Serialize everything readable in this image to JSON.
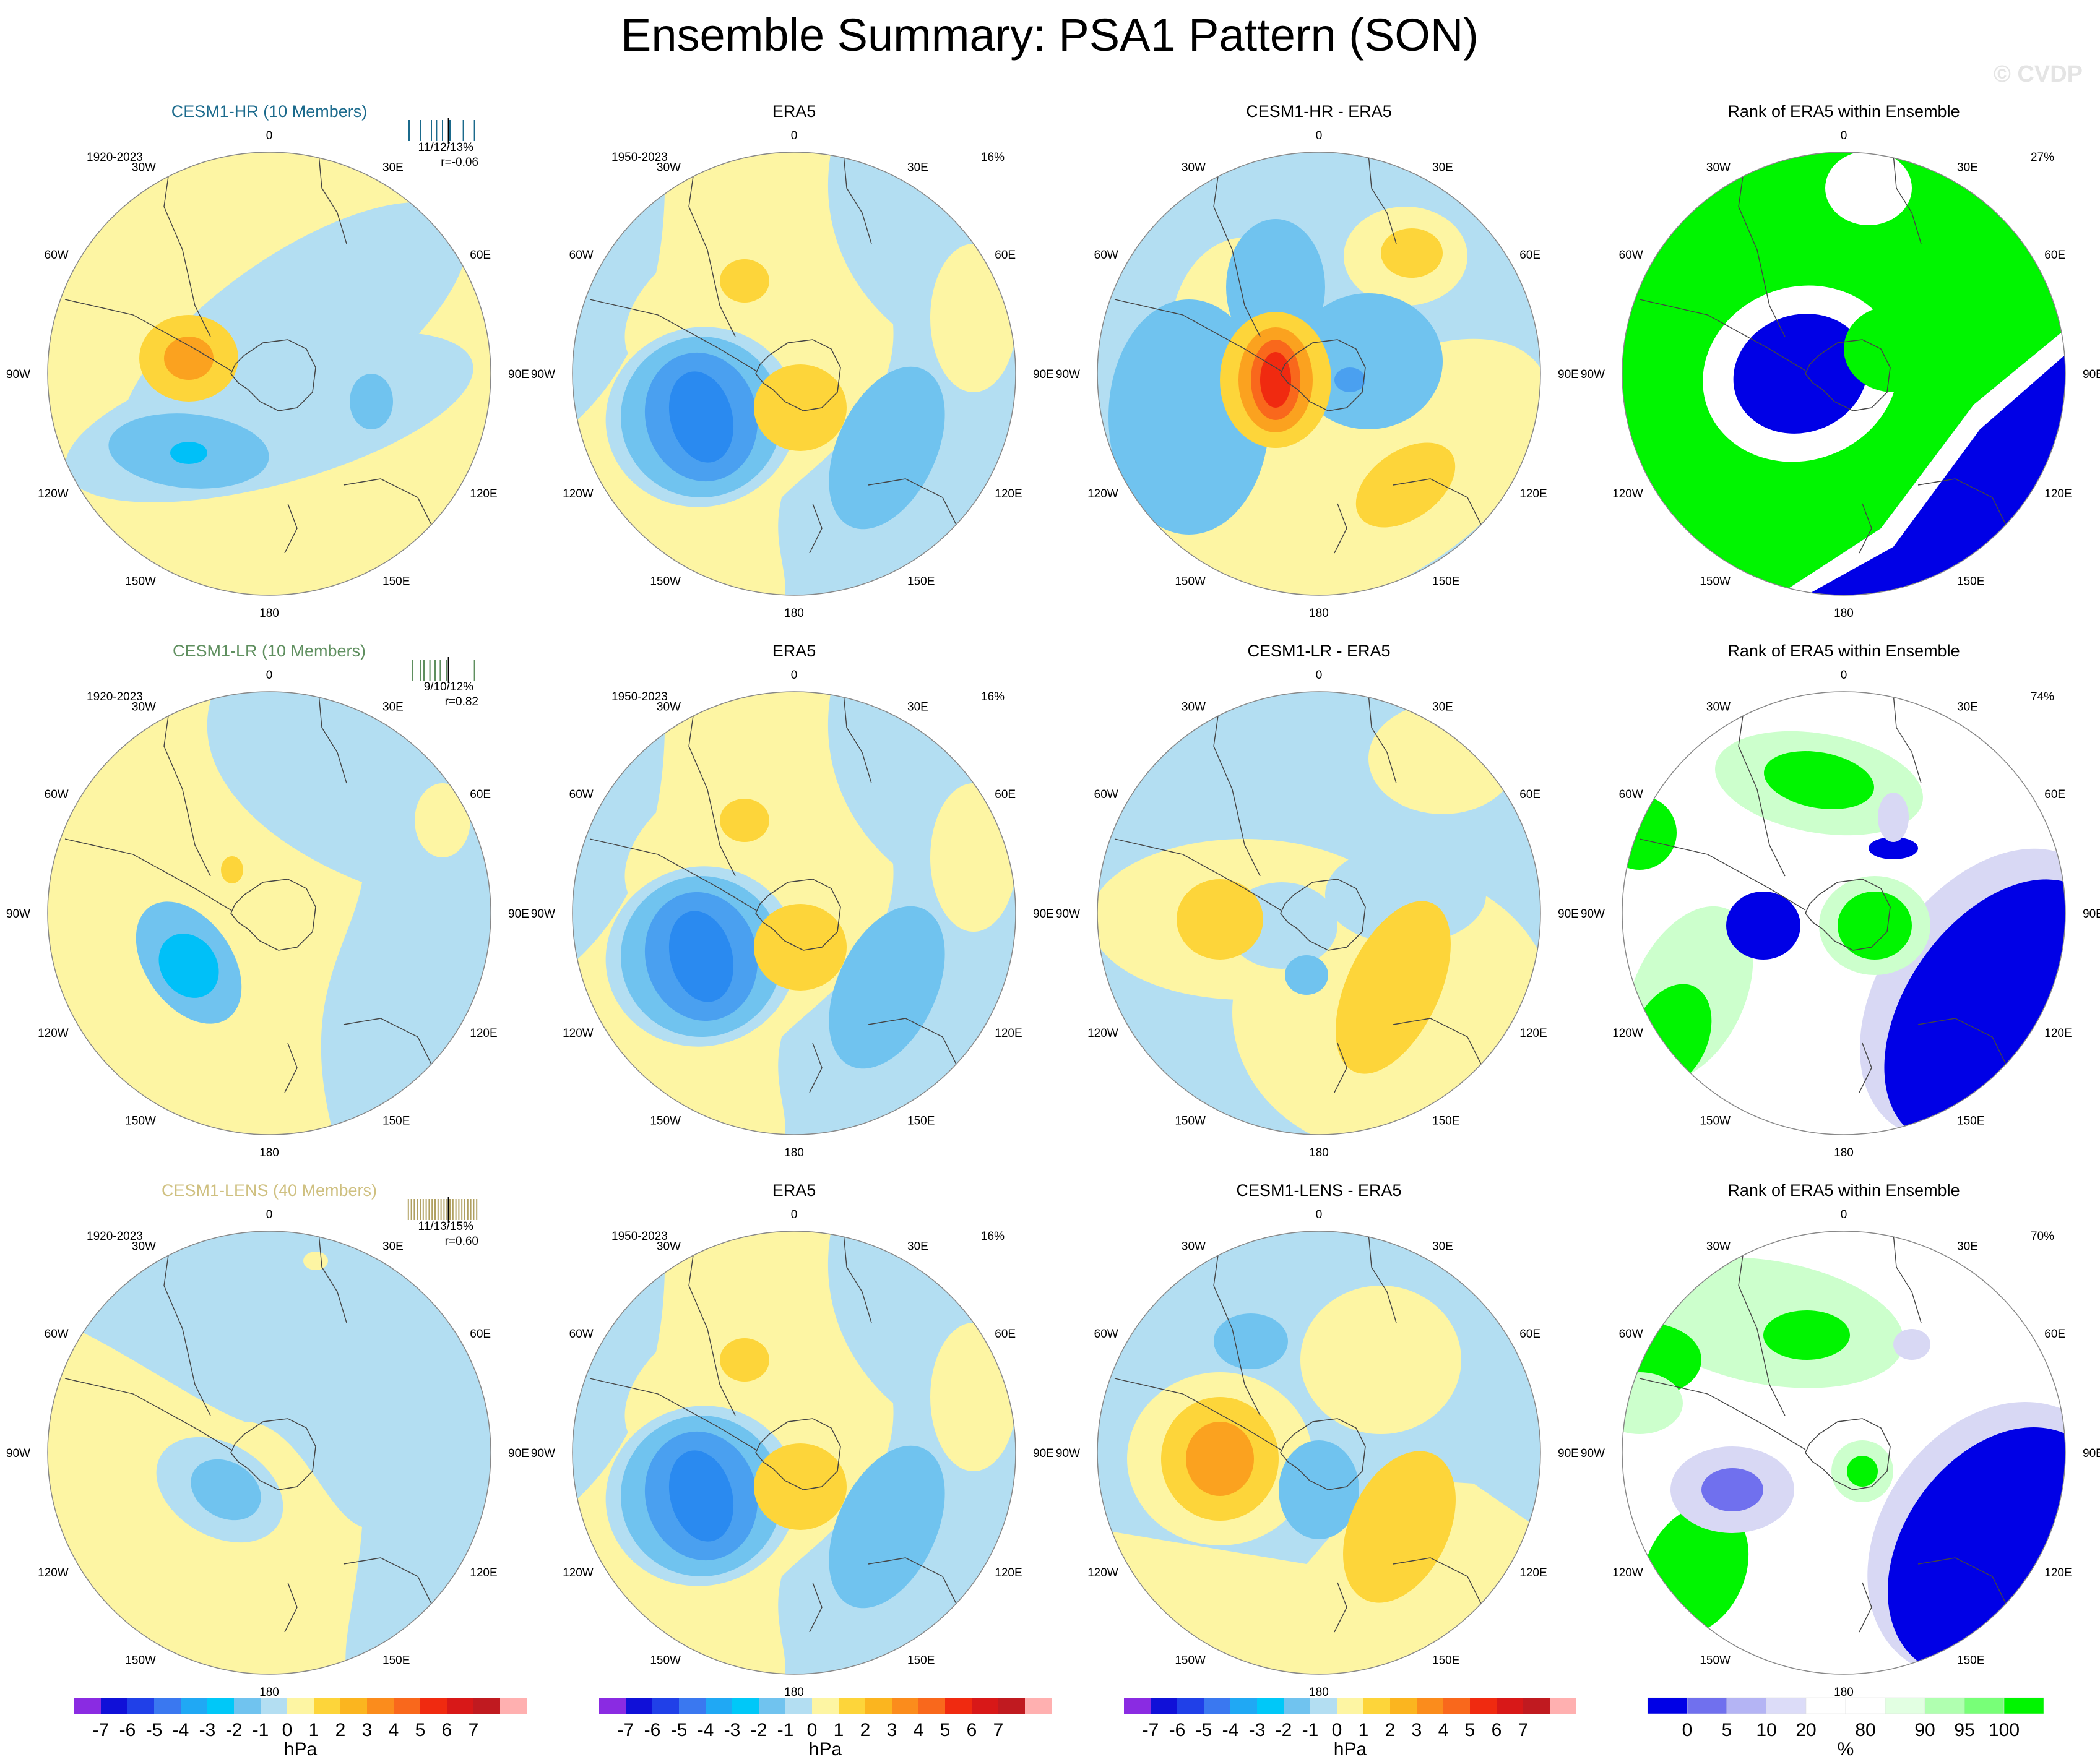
{
  "title": "Ensemble Summary: PSA1 Pattern (SON)",
  "watermark": "© CVDP",
  "colors": {
    "ocean_blue": "#b3def2",
    "land_yellow": "#fdf5a3",
    "neg_1": "#70c3ef",
    "neg_2": "#4aa0f0",
    "neg_3": "#2a8af0",
    "neg_4": "#00c0f8",
    "pos_1": "#fdd53a",
    "pos_2": "#fba21f",
    "pos_3": "#f9681c",
    "pos_4": "#f02a10",
    "rank_low": "#0000e6",
    "rank_high": "#00f500",
    "rank_light_green": "#ccffcc",
    "rank_lavender": "#d8d8f4",
    "hr_title_color": "#1b6a8c",
    "lr_title_color": "#5f8f5f",
    "lens_title_color": "#cfc080"
  },
  "rows": [
    {
      "model_title": "CESM1-HR (10 Members)",
      "model_period": "1920-2023",
      "model_stats": "11/12/13%",
      "model_corr": "r=-0.06",
      "obs_title": "ERA5",
      "obs_period": "1950-2023",
      "obs_pct": "16%",
      "diff_title": "CESM1-HR - ERA5",
      "rank_title": "Rank of ERA5 within Ensemble",
      "rank_pct": "27%",
      "model_ticks": [
        0.05,
        0.2,
        0.35,
        0.42,
        0.5,
        0.6,
        0.78,
        0.93
      ],
      "model_tick_color": "#1b6a8c"
    },
    {
      "model_title": "CESM1-LR (10 Members)",
      "model_period": "1920-2023",
      "model_stats": "9/10/12%",
      "model_corr": "r=0.82",
      "obs_title": "ERA5",
      "obs_period": "1950-2023",
      "obs_pct": "16%",
      "diff_title": "CESM1-LR - ERA5",
      "rank_title": "Rank of ERA5 within Ensemble",
      "rank_pct": "74%",
      "model_ticks": [
        0.1,
        0.2,
        0.25,
        0.33,
        0.4,
        0.47,
        0.55,
        0.93
      ],
      "model_tick_color": "#5f8f5f"
    },
    {
      "model_title": "CESM1-LENS (40 Members)",
      "model_period": "1920-2023",
      "model_stats": "11/13/15%",
      "model_corr": "r=0.60",
      "obs_title": "ERA5",
      "obs_period": "1950-2023",
      "obs_pct": "16%",
      "diff_title": "CESM1-LENS - ERA5",
      "rank_title": "Rank of ERA5 within Ensemble",
      "rank_pct": "70%",
      "model_ticks": [
        0.04,
        0.08,
        0.12,
        0.16,
        0.2,
        0.24,
        0.28,
        0.32,
        0.36,
        0.4,
        0.44,
        0.48,
        0.52,
        0.56,
        0.6,
        0.64,
        0.68,
        0.72,
        0.76,
        0.8,
        0.84,
        0.88,
        0.92,
        0.96
      ],
      "model_tick_color": "#b0a060"
    }
  ],
  "lon_labels": [
    "0",
    "30E",
    "60E",
    "90E",
    "120E",
    "150E",
    "180",
    "150W",
    "120W",
    "90W",
    "60W",
    "30W"
  ],
  "colorbar_hpa": {
    "colors": [
      "#8a2be2",
      "#1010d8",
      "#2040e8",
      "#3a78f0",
      "#20a8f4",
      "#00c8f8",
      "#70c3ef",
      "#b3def2",
      "#fdf5a3",
      "#fdd53a",
      "#fbb51f",
      "#fb8c1c",
      "#f9681c",
      "#f02a10",
      "#d81818",
      "#c01a20",
      "#ffb0b0"
    ],
    "labels": [
      "-7",
      "-6",
      "-5",
      "-4",
      "-3",
      "-2",
      "-1",
      "0",
      "1",
      "2",
      "3",
      "4",
      "5",
      "6",
      "7"
    ],
    "unit": "hPa"
  },
  "colorbar_rank": {
    "colors": [
      "#0000e6",
      "#7070ee",
      "#b4b4f4",
      "#dcdcf8",
      "#ffffff",
      "#ffffff",
      "#e2ffe2",
      "#b0ffb0",
      "#78ff78",
      "#00f500"
    ],
    "labels": [
      "0",
      "5",
      "10",
      "20",
      "80",
      "90",
      "95",
      "100"
    ],
    "unit": "%"
  }
}
